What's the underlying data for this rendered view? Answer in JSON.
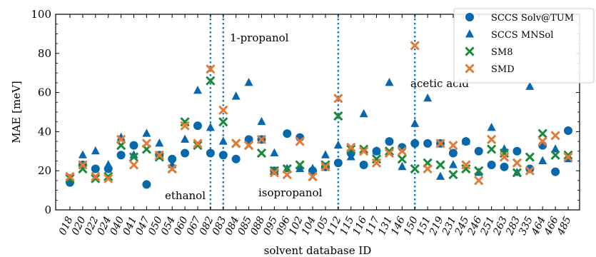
{
  "chart_data": {
    "type": "scatter",
    "xlabel": "solvent database ID",
    "ylabel": "MAE [meV]",
    "ylim": [
      0,
      100
    ],
    "yticks": [
      0,
      20,
      40,
      60,
      80,
      100
    ],
    "categories": [
      "018",
      "020",
      "022",
      "024",
      "040",
      "041",
      "047",
      "050",
      "054",
      "060",
      "067",
      "082",
      "083",
      "084",
      "085",
      "088",
      "095",
      "096",
      "102",
      "104",
      "105",
      "112",
      "115",
      "116",
      "117",
      "131",
      "146",
      "150",
      "151",
      "219",
      "231",
      "245",
      "246",
      "251",
      "263",
      "283",
      "335",
      "464",
      "466",
      "485"
    ],
    "series": [
      {
        "name": "SCCS Solv@TUM",
        "marker": "circle",
        "color": "#0868ac",
        "values": [
          14,
          23,
          21,
          21,
          28,
          33,
          13,
          28,
          26,
          29,
          43,
          29,
          28,
          26,
          36,
          36,
          20,
          39,
          37,
          20,
          22,
          24,
          29,
          23,
          30,
          35,
          32,
          34,
          34,
          34,
          29,
          35,
          30,
          23,
          22,
          30,
          21,
          33,
          19.5,
          40.5
        ]
      },
      {
        "name": "SCCS MNSol",
        "marker": "triangle",
        "color": "#0868ac",
        "values": [
          16,
          28,
          30,
          23,
          37,
          28,
          39,
          34,
          23,
          36,
          61,
          42,
          35,
          58,
          65,
          45,
          29,
          21,
          21,
          21,
          28,
          33,
          27,
          49,
          30,
          65,
          22,
          44,
          57,
          17,
          23,
          35,
          19,
          42,
          31,
          19,
          63,
          25,
          31,
          26
        ]
      },
      {
        "name": "SM8",
        "marker": "x",
        "color": "#1a8a3a",
        "values": [
          16,
          21,
          16,
          17,
          33,
          27,
          31,
          27,
          21,
          45,
          33,
          66,
          45,
          34,
          33,
          29,
          20,
          21,
          23,
          17,
          23,
          48,
          31,
          31,
          26,
          30,
          26,
          21,
          24,
          23,
          18,
          21,
          20,
          31,
          29,
          19,
          27,
          39,
          28,
          28
        ]
      },
      {
        "name": "SMD",
        "marker": "x",
        "color": "#e07b39",
        "values": [
          17,
          23,
          17,
          16,
          36,
          23,
          34,
          28,
          21,
          43,
          34,
          72,
          51,
          34,
          33,
          36,
          19,
          18,
          35,
          17,
          22,
          57,
          32,
          30,
          24,
          29,
          30,
          84,
          21,
          34,
          33,
          23,
          15,
          36,
          27,
          24,
          20,
          35,
          38,
          27
        ]
      }
    ],
    "annotations": [
      {
        "text": "ethanol",
        "category": "082",
        "line": true
      },
      {
        "text": "1-propanol",
        "category": "083",
        "line": true
      },
      {
        "text": "isopropanol",
        "category": "112",
        "line": true
      },
      {
        "text": "acetic acid",
        "category": "150",
        "line": true
      }
    ],
    "legend_position": "top-right",
    "grid": false
  }
}
